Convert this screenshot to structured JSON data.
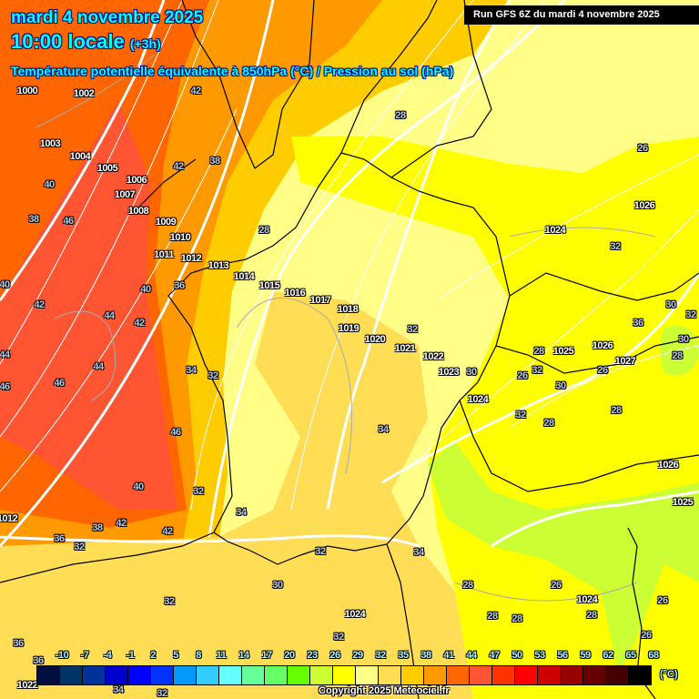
{
  "header": {
    "date": "mardi 4 novembre 2025",
    "time": "10:00 locale",
    "lead": "(+3h)",
    "parameter": "Température potentielle équivalente à 850hPa (°C) / Pression au sol (hPa)",
    "run": "Run GFS 6Z du mardi 4 novembre 2025"
  },
  "map": {
    "pressure_labels": [
      "1000",
      "1002",
      "1003",
      "1004",
      "1005",
      "1006",
      "1007",
      "1008",
      "1009",
      "1010",
      "1011",
      "1012",
      "1013",
      "1014",
      "1015",
      "1016",
      "1017",
      "1018",
      "1019",
      "1020",
      "1021",
      "1022",
      "1023",
      "1024",
      "1024",
      "1026",
      "1025",
      "1026",
      "1027",
      "1026",
      "1025",
      "1024",
      "1024",
      "1022",
      "1012"
    ],
    "temperature_labels": [
      "42",
      "28",
      "26",
      "42",
      "38",
      "40",
      "38",
      "46",
      "28",
      "32",
      "40",
      "42",
      "40",
      "36",
      "44",
      "42",
      "30",
      "32",
      "36",
      "44",
      "44",
      "34",
      "32",
      "32",
      "28",
      "30",
      "28",
      "46",
      "26",
      "32",
      "26",
      "30",
      "46",
      "30",
      "32",
      "28",
      "28",
      "34",
      "46",
      "40",
      "32",
      "34",
      "38",
      "42",
      "42",
      "36",
      "32",
      "32",
      "34",
      "30",
      "28",
      "26",
      "32",
      "26",
      "28",
      "28",
      "28",
      "26",
      "32",
      "36",
      "36",
      "32",
      "34"
    ],
    "zone_colors": {
      "theta_26": "#ccff33",
      "theta_29": "#ffff00",
      "theta_32": "#ffff88",
      "theta_35": "#ffdd55",
      "theta_38": "#ffcc00",
      "theta_41": "#ff9900",
      "theta_44": "#ff6600",
      "theta_47": "#ff5533"
    }
  },
  "legend": {
    "labels": [
      "-10",
      "-7",
      "-4",
      "-1",
      "2",
      "5",
      "8",
      "11",
      "14",
      "17",
      "20",
      "23",
      "26",
      "29",
      "32",
      "35",
      "38",
      "41",
      "44",
      "47",
      "50",
      "53",
      "56",
      "59",
      "62",
      "65",
      "68"
    ],
    "colors": [
      "#000f3f",
      "#003366",
      "#003399",
      "#0000cc",
      "#0000ff",
      "#0033ff",
      "#0099ff",
      "#33ccff",
      "#66ffff",
      "#66ff99",
      "#66ff66",
      "#66ff00",
      "#ccff33",
      "#ffff00",
      "#ffff88",
      "#ffdd55",
      "#ffcc00",
      "#ff9900",
      "#ff6600",
      "#ff5533",
      "#ff3300",
      "#ff0000",
      "#cc0000",
      "#990000",
      "#660000",
      "#440000",
      "#000000"
    ],
    "unit": "(°C)"
  },
  "footer": {
    "copyright": "Copyright 2025 Meteociel.fr"
  }
}
